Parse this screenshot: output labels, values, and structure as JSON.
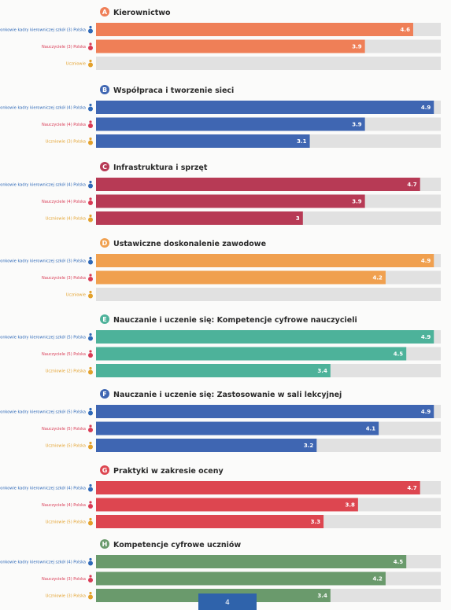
{
  "page_number": "4",
  "colors": {
    "A": "#ef7f57",
    "B": "#3f66b2",
    "C": "#b73a55",
    "D": "#f0a04f",
    "E": "#4db29a",
    "F": "#3f66b2",
    "G": "#dd4650",
    "H": "#6a9a6c",
    "track": "#e1e1e1",
    "role_leaders": "#2f69b8",
    "role_teachers": "#d93b55",
    "role_students": "#e3a12c"
  },
  "chart_data": {
    "type": "bar",
    "orientation": "horizontal",
    "xlim": [
      0,
      5
    ],
    "grid": false,
    "sections": [
      {
        "letter": "A",
        "title": "Kierownictwo",
        "labels": [
          "Członkowie kadry kierowniczej szkół (3) Polska",
          "Nauczyciele (3) Polska",
          "Uczniowie"
        ],
        "values": [
          4.6,
          3.9,
          null
        ]
      },
      {
        "letter": "B",
        "title": "Współpraca i tworzenie sieci",
        "labels": [
          "Członkowie kadry kierowniczej szkół (4) Polska",
          "Nauczyciele (4) Polska",
          "Uczniowie (3) Polska"
        ],
        "values": [
          4.9,
          3.9,
          3.1
        ]
      },
      {
        "letter": "C",
        "title": "Infrastruktura i sprzęt",
        "labels": [
          "Członkowie kadry kierowniczej szkół (4) Polska",
          "Nauczyciele (4) Polska",
          "Uczniowie (4) Polska"
        ],
        "values": [
          4.7,
          3.9,
          3
        ]
      },
      {
        "letter": "D",
        "title": "Ustawiczne doskonalenie zawodowe",
        "labels": [
          "Członkowie kadry kierowniczej szkół (3) Polska",
          "Nauczyciele (3) Polska",
          "Uczniowie"
        ],
        "values": [
          4.9,
          4.2,
          null
        ]
      },
      {
        "letter": "E",
        "title": "Nauczanie i uczenie się: Kompetencje cyfrowe nauczycieli",
        "labels": [
          "Członkowie kadry kierowniczej szkół (5) Polska",
          "Nauczyciele (5) Polska",
          "Uczniowie (2) Polska"
        ],
        "values": [
          4.9,
          4.5,
          3.4
        ]
      },
      {
        "letter": "F",
        "title": "Nauczanie i uczenie się: Zastosowanie w sali lekcyjnej",
        "labels": [
          "Członkowie kadry kierowniczej szkół (5) Polska",
          "Nauczyciele (5) Polska",
          "Uczniowie (5) Polska"
        ],
        "values": [
          4.9,
          4.1,
          3.2
        ]
      },
      {
        "letter": "G",
        "title": "Praktyki w zakresie oceny",
        "labels": [
          "Członkowie kadry kierowniczej szkół (4) Polska",
          "Nauczyciele (4) Polska",
          "Uczniowie (5) Polska"
        ],
        "values": [
          4.7,
          3.8,
          3.3
        ]
      },
      {
        "letter": "H",
        "title": "Kompetencje cyfrowe uczniów",
        "labels": [
          "Członkowie kadry kierowniczej szkół (4) Polska",
          "Nauczyciele (3) Polska",
          "Uczniowie (3) Polska"
        ],
        "values": [
          4.5,
          4.2,
          3.4
        ]
      }
    ]
  }
}
